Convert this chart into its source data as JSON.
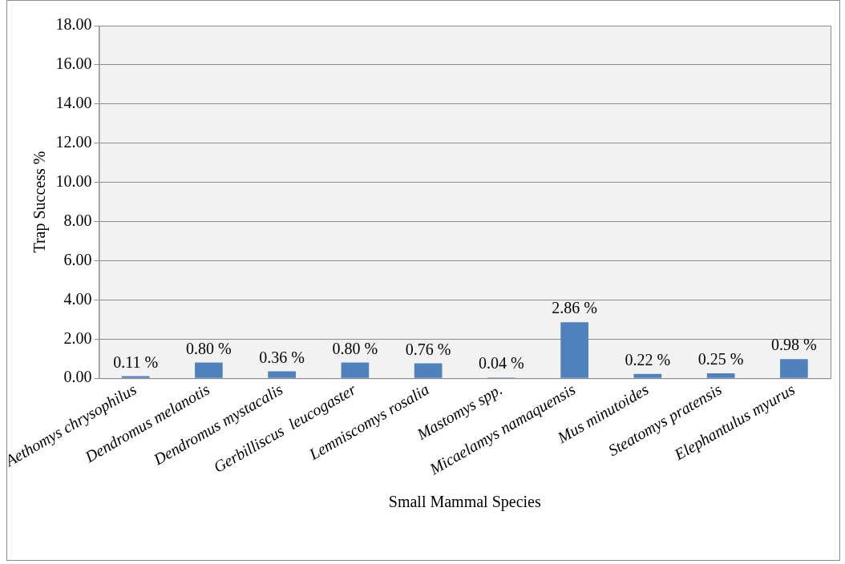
{
  "chart_data": {
    "type": "bar",
    "xlabel": "Small Mammal Species",
    "ylabel": "Trap Success %",
    "categories": [
      "Aethomys chrysophilus",
      "Dendromus melanotis",
      "Dendromus mystacalis",
      "Gerbilliscus  leucogaster",
      "Lemniscomys rosalia",
      "Mastomys spp.",
      "Micaelamys namaquensis",
      "Mus minutoides",
      "Steatomys pratensis",
      "Elephantulus myurus"
    ],
    "values": [
      0.11,
      0.8,
      0.36,
      0.8,
      0.76,
      0.04,
      2.86,
      0.22,
      0.25,
      0.98
    ],
    "value_labels": [
      "0.11 %",
      "0.80 %",
      "0.36 %",
      "0.80 %",
      "0.76 %",
      "0.04 %",
      "2.86 %",
      "0.22 %",
      "0.25 %",
      "0.98 %"
    ],
    "color": "#4f81bd",
    "ylim": [
      0,
      18
    ],
    "yticks": [
      {
        "value": 0,
        "label": "0.00"
      },
      {
        "value": 2,
        "label": "2.00"
      },
      {
        "value": 4,
        "label": "4.00"
      },
      {
        "value": 6,
        "label": "6.00"
      },
      {
        "value": 8,
        "label": "8.00"
      },
      {
        "value": 10,
        "label": "10.00"
      },
      {
        "value": 12,
        "label": "12.00"
      },
      {
        "value": 14,
        "label": "14.00"
      },
      {
        "value": 16,
        "label": "16.00"
      },
      {
        "value": 18,
        "label": "18.00"
      }
    ],
    "grid": "y",
    "legend": false
  }
}
